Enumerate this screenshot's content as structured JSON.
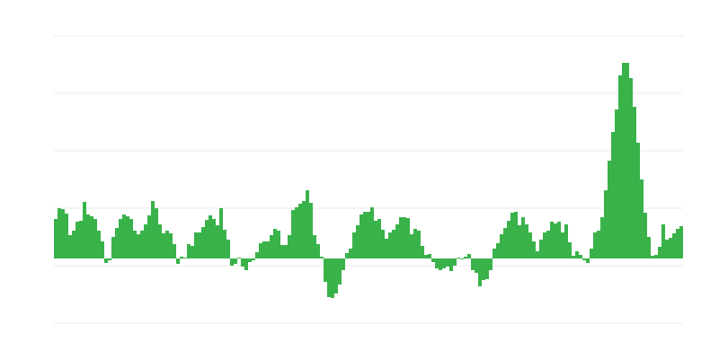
{
  "chart_data": {
    "type": "bar",
    "title": "",
    "xlabel": "",
    "ylabel": "",
    "ylim": [
      -72,
      248
    ],
    "gridlines": [
      248,
      184,
      120,
      56,
      -8,
      -72
    ],
    "grid": true,
    "legend": "none",
    "color": "#39b24a",
    "grid_color": "#ebebeb",
    "values": [
      44,
      56,
      55,
      50,
      26,
      31,
      41,
      42,
      63,
      49,
      47,
      44,
      31,
      19,
      -5,
      -2,
      24,
      34,
      44,
      49,
      47,
      44,
      31,
      27,
      31,
      38,
      48,
      64,
      56,
      38,
      28,
      31,
      28,
      16,
      -6,
      2,
      1,
      16,
      14,
      29,
      29,
      35,
      43,
      48,
      44,
      37,
      56,
      32,
      21,
      -8,
      -6,
      1,
      -9,
      -13,
      -4,
      -2,
      7,
      17,
      19,
      19,
      26,
      33,
      31,
      15,
      15,
      26,
      54,
      57,
      61,
      64,
      76,
      62,
      26,
      16,
      2,
      -26,
      -43,
      -44,
      -39,
      -29,
      -13,
      6,
      11,
      29,
      37,
      49,
      52,
      52,
      57,
      42,
      44,
      32,
      22,
      29,
      32,
      38,
      46,
      46,
      45,
      27,
      33,
      31,
      14,
      4,
      5,
      -4,
      -11,
      -13,
      -11,
      -9,
      -14,
      -8,
      1,
      -1,
      2,
      5,
      -13,
      -16,
      -31,
      -24,
      -23,
      -13,
      11,
      17,
      27,
      34,
      42,
      51,
      52,
      37,
      46,
      38,
      29,
      19,
      8,
      21,
      29,
      31,
      41,
      39,
      41,
      29,
      38,
      18,
      3,
      8,
      4,
      -2,
      -5,
      11,
      29,
      31,
      46,
      76,
      109,
      141,
      166,
      204,
      218,
      218,
      201,
      169,
      129,
      88,
      51,
      24,
      3,
      4,
      13,
      38,
      21,
      23,
      28,
      33,
      36
    ]
  }
}
